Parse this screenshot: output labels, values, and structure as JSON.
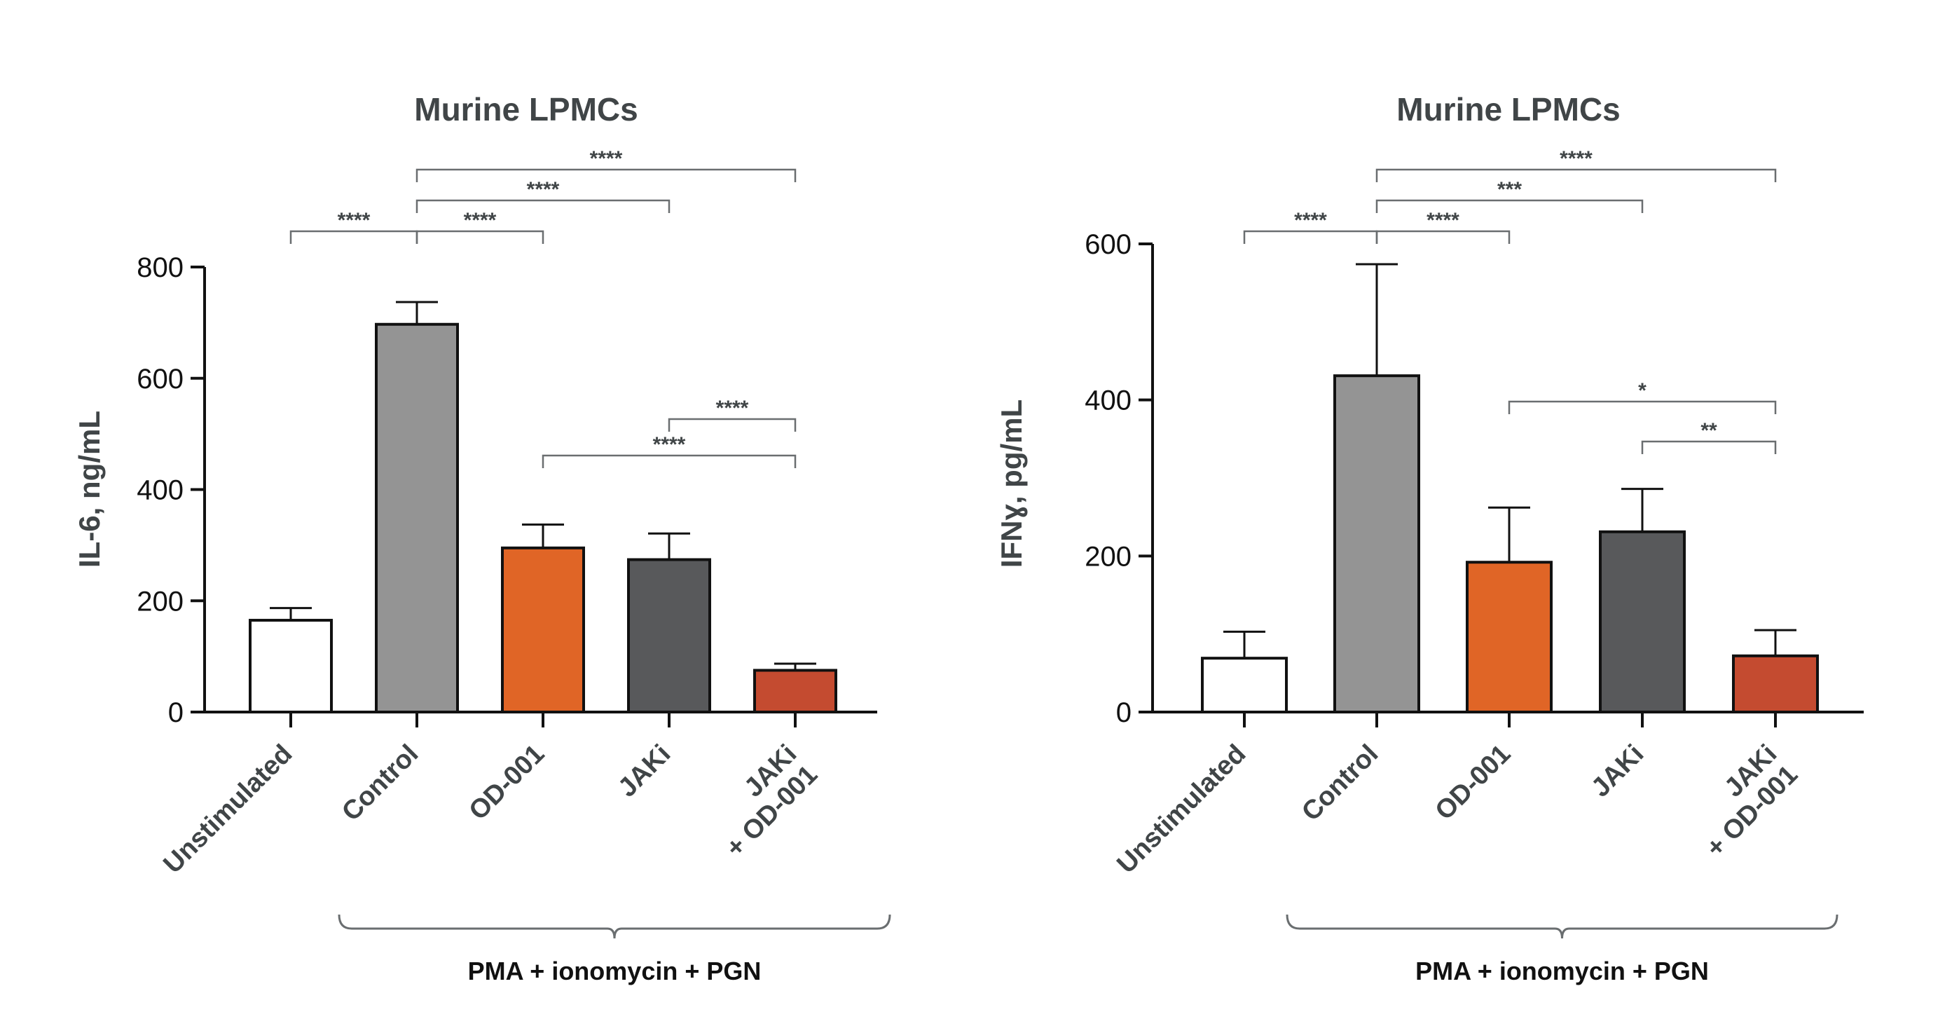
{
  "chart_data": [
    {
      "type": "bar",
      "title": "Murine LPMCs",
      "ylabel": "IL-6, ng/mL",
      "xlabel": "",
      "ylim": [
        0,
        800
      ],
      "yticks": [
        0,
        200,
        400,
        600,
        800
      ],
      "categories": [
        "Unstimulated",
        "Control",
        "OD-001",
        "JAKi",
        "JAKi\n+ OD-001"
      ],
      "values": [
        165,
        697,
        295,
        274,
        75
      ],
      "errors": [
        22,
        40,
        42,
        47,
        12
      ],
      "colors": [
        "#ffffff",
        "#949494",
        "#e06526",
        "#58595b",
        "#c44b30"
      ],
      "group_label": "PMA + ionomycin + PGN",
      "group_span": [
        1,
        4
      ],
      "significance": [
        {
          "from": 0,
          "to": 1,
          "label": "****",
          "level": 0
        },
        {
          "from": 1,
          "to": 2,
          "label": "****",
          "level": 0
        },
        {
          "from": 1,
          "to": 3,
          "label": "****",
          "level": 1
        },
        {
          "from": 1,
          "to": 4,
          "label": "****",
          "level": 2
        },
        {
          "from": 2,
          "to": 4,
          "label": "****",
          "level": -2
        },
        {
          "from": 3,
          "to": 4,
          "label": "****",
          "level": -1
        }
      ]
    },
    {
      "type": "bar",
      "title": "Murine LPMCs",
      "ylabel": "IFNɣ, pg/mL",
      "xlabel": "",
      "ylim": [
        0,
        600
      ],
      "yticks": [
        0,
        200,
        400,
        600
      ],
      "categories": [
        "Unstimulated",
        "Control",
        "OD-001",
        "JAKi",
        "JAKi\n+ OD-001"
      ],
      "values": [
        69,
        431,
        192,
        231,
        72
      ],
      "errors": [
        34,
        143,
        70,
        55,
        33
      ],
      "colors": [
        "#ffffff",
        "#949494",
        "#e06526",
        "#58595b",
        "#c44b30"
      ],
      "group_label": "PMA + ionomycin + PGN",
      "group_span": [
        1,
        4
      ],
      "significance": [
        {
          "from": 0,
          "to": 1,
          "label": "****",
          "level": 0
        },
        {
          "from": 1,
          "to": 2,
          "label": "****",
          "level": 0
        },
        {
          "from": 1,
          "to": 3,
          "label": "***",
          "level": 1
        },
        {
          "from": 1,
          "to": 4,
          "label": "****",
          "level": 2
        },
        {
          "from": 2,
          "to": 4,
          "label": "*",
          "level": -2
        },
        {
          "from": 3,
          "to": 4,
          "label": "**",
          "level": -1
        }
      ]
    }
  ]
}
